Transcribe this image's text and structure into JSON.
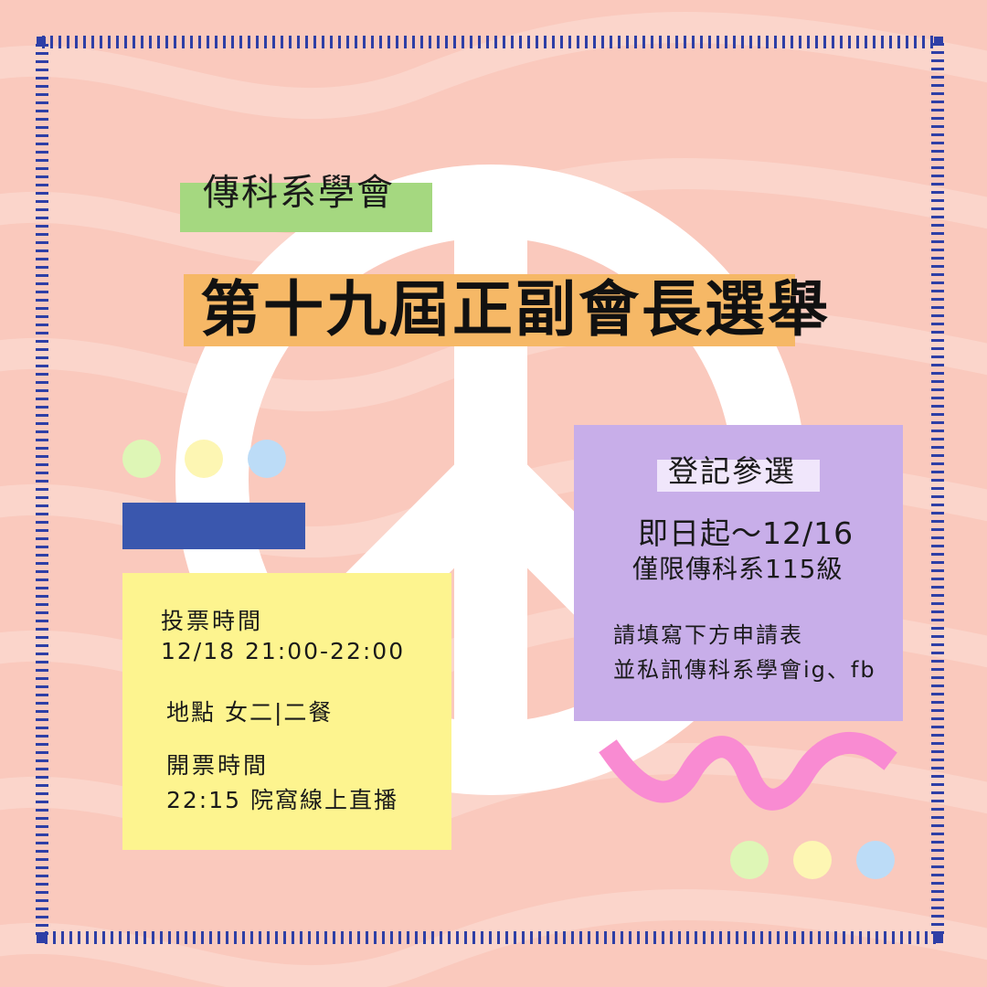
{
  "header": {
    "organizer": "傳科系學會",
    "title": "第十九屆正副會長選舉"
  },
  "registration": {
    "heading": "登記參選",
    "period": "即日起～12/16",
    "eligibility": "僅限傳科系115級",
    "instruction_1": "請填寫下方申請表",
    "instruction_2": "並私訊傳科系學會ig、fb"
  },
  "voting": {
    "time_label": "投票時間",
    "time_value": "12/18 21:00-22:00",
    "location": "地點 女二|二餐",
    "count_label": "開票時間",
    "count_value": "22:15 院窩線上直播"
  },
  "colors": {
    "background": "#fac9bd",
    "wave": "#fbd5cb",
    "frame": "#2e3fa6",
    "organizer_tag": "#a5d880",
    "title_tag": "#f6b866",
    "registration_card": "#c8aee9",
    "voting_card": "#fdf48f",
    "blue_bar": "#3a57ae",
    "squiggle": "#f98bd2",
    "dot_green": "#def6b6",
    "dot_yellow": "#fdf6b3",
    "dot_blue": "#bcdcf7"
  }
}
